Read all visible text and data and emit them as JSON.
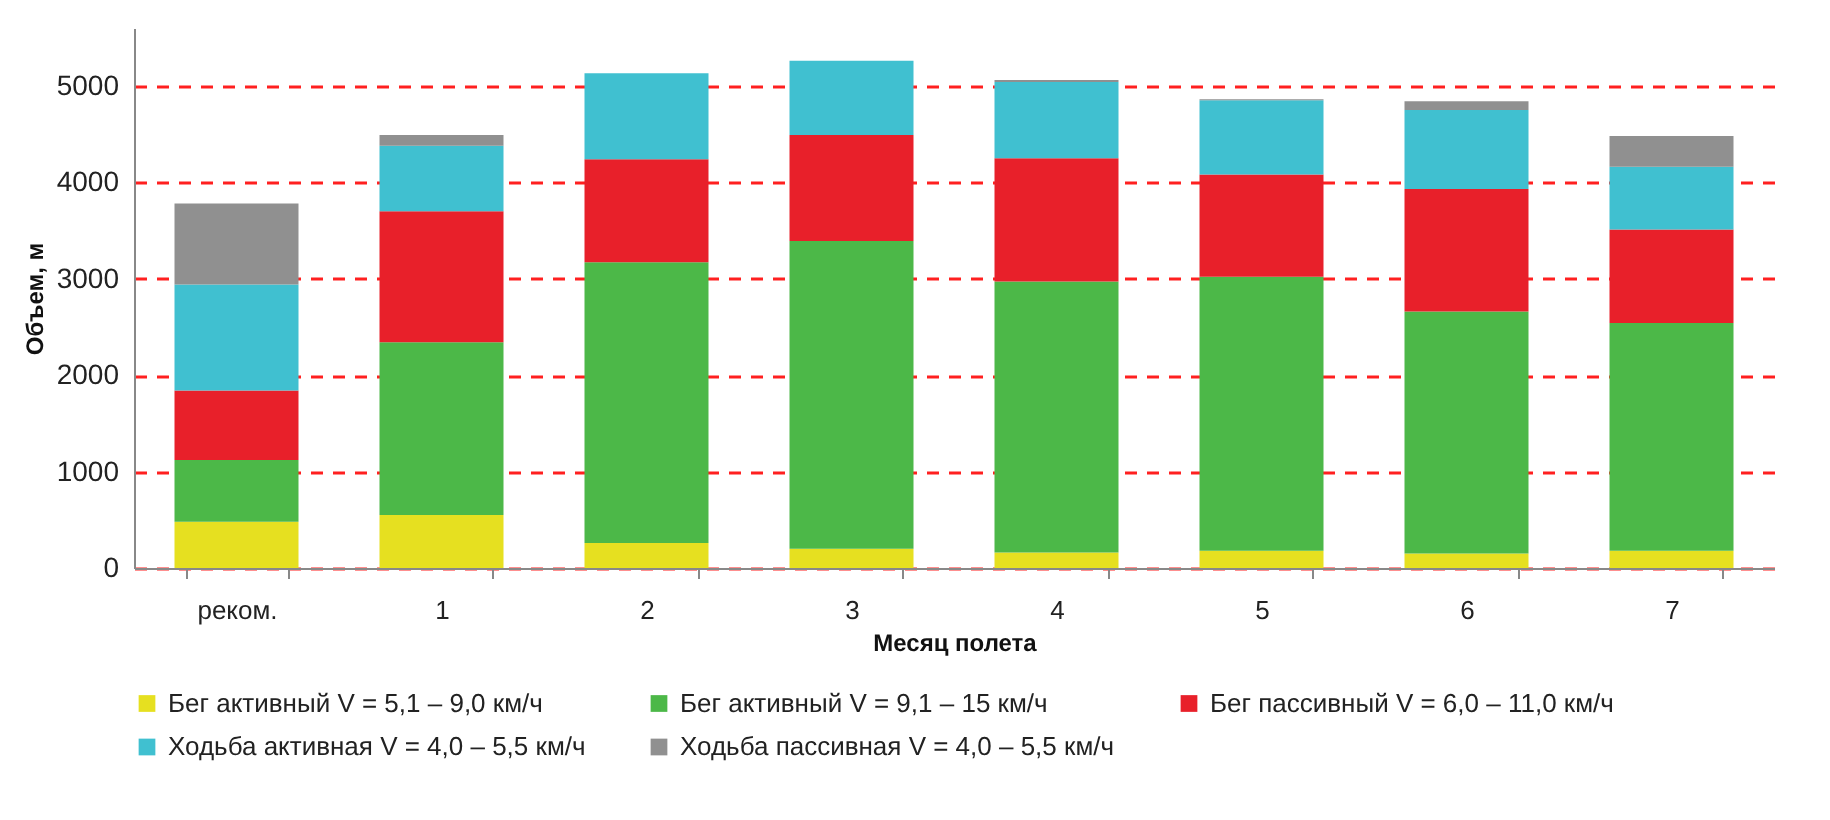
{
  "chart_data": {
    "type": "bar",
    "stacked": true,
    "xlabel": "Месяц полета",
    "ylabel": "Объем, м",
    "categories": [
      "реком.",
      "1",
      "2",
      "3",
      "4",
      "5",
      "6",
      "7"
    ],
    "series": [
      {
        "name": "Бег активный V = 5,1 – 9,0 км/ч",
        "color": "#e6e020",
        "values": [
          480,
          550,
          260,
          200,
          160,
          180,
          150,
          180
        ]
      },
      {
        "name": "Бег активный V = 9,1 – 15 км/ч",
        "color": "#4cb848",
        "values": [
          640,
          1790,
          2910,
          3190,
          2810,
          2840,
          2510,
          2360
        ]
      },
      {
        "name": "Бег пассивный V = 6,0 – 11,0 км/ч",
        "color": "#e8202a",
        "values": [
          720,
          1360,
          1070,
          1100,
          1280,
          1060,
          1270,
          970
        ]
      },
      {
        "name": "Ходьба активная V = 4,0 – 5,5 км/ч",
        "color": "#40c0d0",
        "values": [
          1100,
          680,
          890,
          770,
          790,
          770,
          820,
          650
        ]
      },
      {
        "name": "Ходьба пассивная V = 4,0 – 5,5 км/ч",
        "color": "#909090",
        "values": [
          840,
          110,
          0,
          0,
          20,
          10,
          90,
          320
        ]
      }
    ],
    "ylim": [
      0,
      5600
    ],
    "yticks": [
      0,
      1000,
      2000,
      3000,
      4000,
      5000
    ],
    "grid": "y",
    "legend": "bottom"
  }
}
